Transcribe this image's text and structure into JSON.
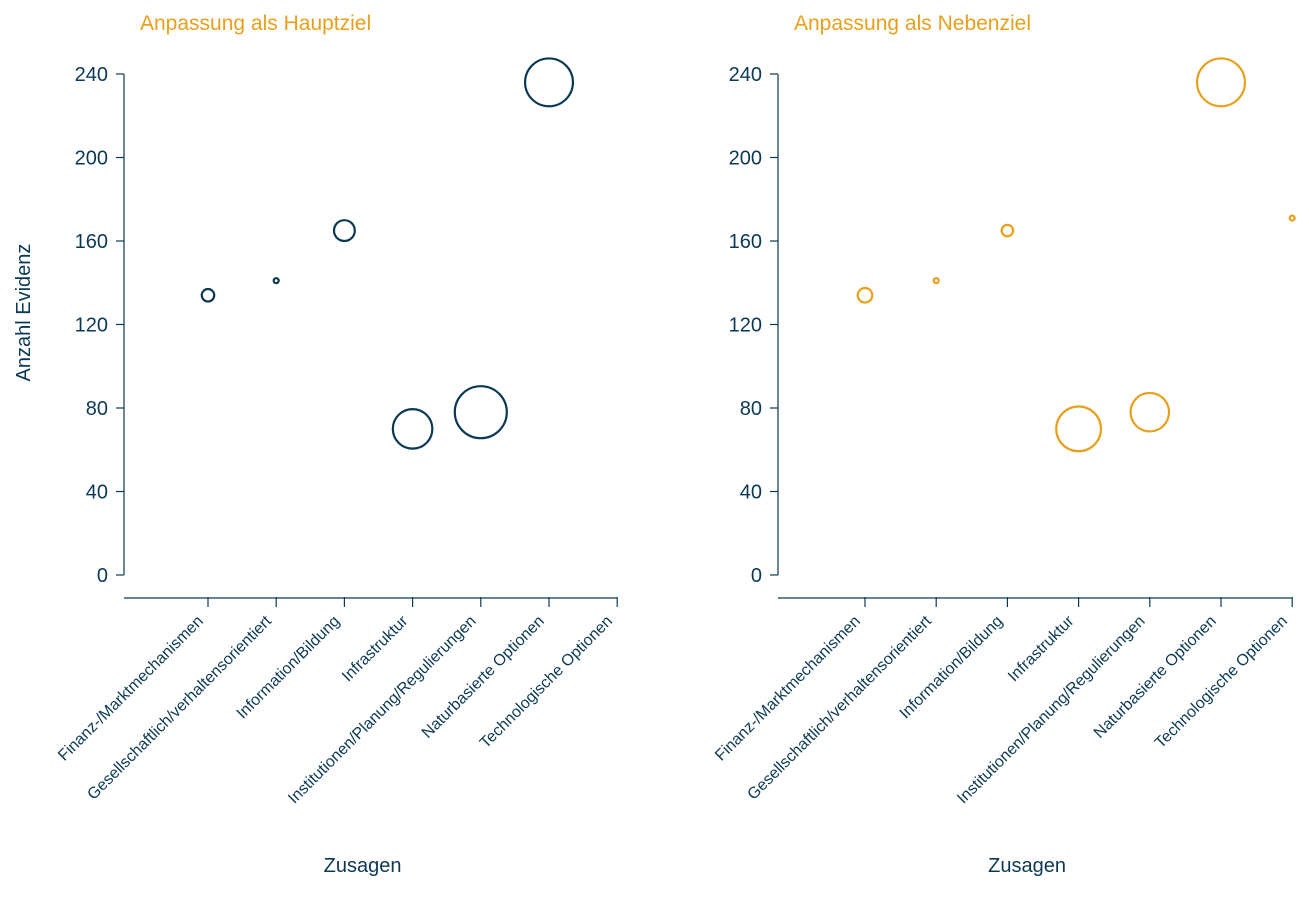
{
  "colors": {
    "axis": "#0b3954",
    "title": "#e8a01c"
  },
  "chart_data": [
    {
      "type": "scatter",
      "title": "Anpassung als Hauptziel",
      "xlabel": "Zusagen",
      "ylabel": "Anzahl Evidenz",
      "ylim": [
        0,
        240
      ],
      "yticks": [
        "0",
        "40",
        "80",
        "120",
        "160",
        "200",
        "240"
      ],
      "categories": [
        "Finanz-/Marktmechanismen",
        "Gesellschaftlich/verhaltensorientiert",
        "Information/Bildung",
        "Infrastruktur",
        "Institutionen/Planung/Regulierungen",
        "Naturbasierte Optionen",
        "Technologische Optionen"
      ],
      "color": "#0b3954",
      "points": [
        {
          "category": "Finanz-/Marktmechanismen",
          "y": 134,
          "size": 0.12
        },
        {
          "category": "Gesellschaftlich/verhaltensorientiert",
          "y": 141,
          "size": 0.03
        },
        {
          "category": "Information/Bildung",
          "y": 165,
          "size": 0.2
        },
        {
          "category": "Infrastruktur",
          "y": 70,
          "size": 0.38
        },
        {
          "category": "Institutionen/Planung/Regulierungen",
          "y": 78,
          "size": 0.5
        },
        {
          "category": "Naturbasierte Optionen",
          "y": 236,
          "size": 0.46
        }
      ]
    },
    {
      "type": "scatter",
      "title": "Anpassung als Nebenziel",
      "xlabel": "Zusagen",
      "ylabel": "",
      "ylim": [
        0,
        240
      ],
      "yticks": [
        "0",
        "40",
        "80",
        "120",
        "160",
        "200",
        "240"
      ],
      "categories": [
        "Finanz-/Marktmechanismen",
        "Gesellschaftlich/verhaltensorientiert",
        "Information/Bildung",
        "Infrastruktur",
        "Institutionen/Planung/Regulierungen",
        "Naturbasierte Optionen",
        "Technologische Optionen"
      ],
      "color": "#e8a01c",
      "points": [
        {
          "category": "Finanz-/Marktmechanismen",
          "y": 134,
          "size": 0.14
        },
        {
          "category": "Gesellschaftlich/verhaltensorientiert",
          "y": 141,
          "size": 0.04
        },
        {
          "category": "Information/Bildung",
          "y": 165,
          "size": 0.11
        },
        {
          "category": "Infrastruktur",
          "y": 70,
          "size": 0.43
        },
        {
          "category": "Institutionen/Planung/Regulierungen",
          "y": 78,
          "size": 0.37
        },
        {
          "category": "Naturbasierte Optionen",
          "y": 236,
          "size": 0.46
        },
        {
          "category": "Technologische Optionen",
          "y": 171,
          "size": 0.02
        }
      ]
    }
  ]
}
